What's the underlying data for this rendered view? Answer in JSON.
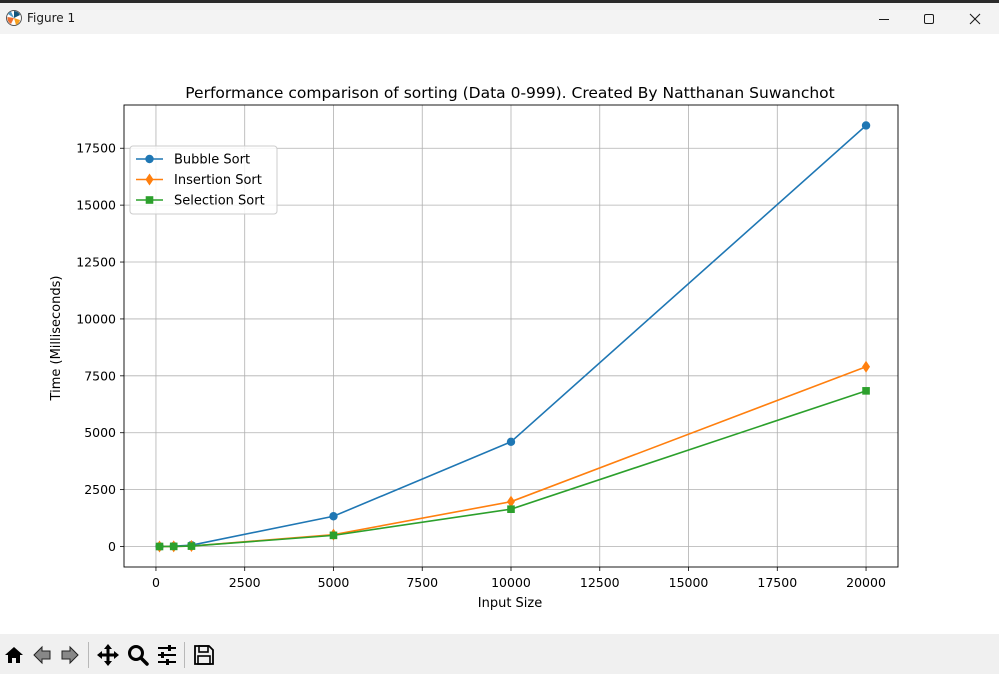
{
  "window": {
    "title": "Figure 1",
    "controls": {
      "minimize_icon": "minimize-icon",
      "maximize_icon": "maximize-icon",
      "close_icon": "close-icon"
    }
  },
  "toolbar": {
    "buttons": [
      "home-icon",
      "back-icon",
      "forward-icon",
      "pan-icon",
      "zoom-icon",
      "configure-subplots-icon",
      "save-icon"
    ]
  },
  "chart_data": {
    "type": "line",
    "title": "Performance comparison of sorting (Data 0-999). Created By Natthanan Suwanchot",
    "xlabel": "Input Size",
    "ylabel": "Time (Milliseconds)",
    "xlim": [
      -900,
      20900
    ],
    "ylim": [
      -900,
      19400
    ],
    "xticks": [
      0,
      2500,
      5000,
      7500,
      10000,
      12500,
      15000,
      17500,
      20000
    ],
    "yticks": [
      0,
      2500,
      5000,
      7500,
      10000,
      12500,
      15000,
      17500
    ],
    "grid": true,
    "legend": "upper-left",
    "x": [
      100,
      500,
      1000,
      5000,
      10000,
      20000
    ],
    "series": [
      {
        "name": "Bubble Sort",
        "marker": "circle",
        "color": "#1f77b4",
        "values": [
          1,
          15,
          60,
          1330,
          4600,
          18500
        ]
      },
      {
        "name": "Insertion Sort",
        "marker": "diamond",
        "color": "#ff7f0e",
        "values": [
          0.5,
          5,
          20,
          520,
          1970,
          7900
        ]
      },
      {
        "name": "Selection Sort",
        "marker": "square",
        "color": "#2ca02c",
        "values": [
          0.5,
          5,
          18,
          490,
          1640,
          6840
        ]
      }
    ]
  }
}
